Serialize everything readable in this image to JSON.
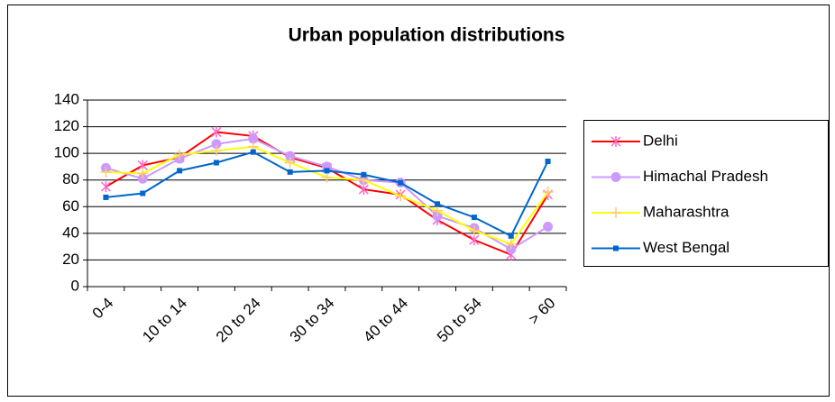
{
  "chart_data": {
    "type": "line",
    "title": "Urban population distributions",
    "categories": [
      "0-4",
      null,
      "10 to 14",
      null,
      "20 to 24",
      null,
      "30 to 34",
      null,
      "40 to 44",
      null,
      "50 to 54",
      null,
      "> 60"
    ],
    "series": [
      {
        "name": "Delhi",
        "color": "#ff0000",
        "marker": "asterisk",
        "marker_color": "#ff66cc",
        "values": [
          75,
          91,
          97,
          116,
          113,
          97,
          89,
          73,
          69,
          50,
          35,
          24,
          69
        ]
      },
      {
        "name": "Himachal Pradesh",
        "color": "#cc99ff",
        "marker": "circle",
        "marker_color": "#cc99ff",
        "values": [
          89,
          81,
          96,
          107,
          111,
          98,
          90,
          80,
          78,
          53,
          44,
          28,
          45
        ]
      },
      {
        "name": "Maharashtra",
        "color": "#ffff00",
        "marker": "plus",
        "marker_color": "#ffcc66",
        "values": [
          86,
          85,
          99,
          102,
          105,
          93,
          82,
          80,
          68,
          57,
          42,
          32,
          71
        ]
      },
      {
        "name": "West Bengal",
        "color": "#0066cc",
        "marker": "square",
        "marker_color": "#0066cc",
        "values": [
          67,
          70,
          87,
          93,
          101,
          86,
          87,
          84,
          78,
          62,
          52,
          38,
          94
        ]
      }
    ],
    "ylim": [
      0,
      140
    ],
    "yticks": [
      0,
      20,
      40,
      60,
      80,
      100,
      120,
      140
    ],
    "grid": true,
    "legend": "right"
  }
}
